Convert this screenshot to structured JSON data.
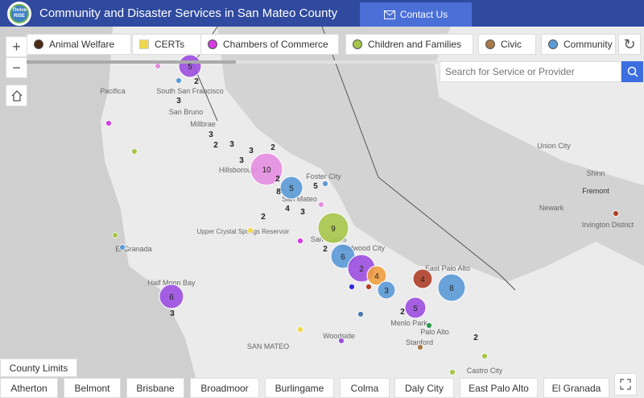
{
  "header": {
    "logo_text": "Thrive RISE",
    "title": "Community and Disaster Services in San Mateo County",
    "contact_label": "Contact Us"
  },
  "legend": [
    {
      "label": "Animal Welfare",
      "color": "#4a2a14",
      "shape": "circle"
    },
    {
      "label": "CERTs",
      "color": "#f0d84a",
      "shape": "square"
    },
    {
      "label": "Chambers of Commerce",
      "color": "#d23ee0",
      "shape": "circle"
    },
    {
      "label": "Children and Families",
      "color": "#a6c64a",
      "shape": "circle"
    },
    {
      "label": "Civic",
      "color": "#a87a48",
      "shape": "circle"
    },
    {
      "label": "Community",
      "color": "#5a9ad6",
      "shape": "circle"
    }
  ],
  "controls": {
    "zoom_in": "+",
    "zoom_out": "−",
    "home_icon": "home-icon",
    "refresh_icon": "refresh-icon",
    "fullscreen_icon": "fullscreen-icon"
  },
  "search": {
    "placeholder": "Search for Service or Provider",
    "icon": "search-icon"
  },
  "county_limits_label": "County Limits",
  "city_buttons": [
    "Atherton",
    "Belmont",
    "Brisbane",
    "Broadmoor",
    "Burlingame",
    "Colma",
    "Daly City",
    "East Palo Alto",
    "El Granada"
  ],
  "map": {
    "places": [
      "South San Francisco",
      "Pacifica",
      "San Bruno",
      "Millbrae",
      "Hillsborough",
      "Foster City",
      "San Mateo",
      "Upper Crystal Springs Reservoir",
      "San Carlos",
      "Redwood City",
      "El Granada",
      "Half Moon Bay",
      "Menlo Park",
      "Palo Alto",
      "East Palo Alto",
      "Stanford",
      "Woodside",
      "SAN MATEO",
      "Union City",
      "Shinn",
      "Fremont",
      "Newark",
      "Irvington District",
      "Castro City"
    ],
    "clusters": [
      {
        "count": "5",
        "color": "#9b4fe0"
      },
      {
        "count": "10",
        "color": "#e58ee0"
      },
      {
        "count": "5",
        "color": "#5a9ad6"
      },
      {
        "count": "9",
        "color": "#a6c64a"
      },
      {
        "count": "6",
        "color": "#5a9ad6"
      },
      {
        "count": "2",
        "color": "#9b4fe0"
      },
      {
        "count": "4",
        "color": "#f0a040"
      },
      {
        "count": "3",
        "color": "#5a9ad6"
      },
      {
        "count": "4",
        "color": "#b0402a"
      },
      {
        "count": "8",
        "color": "#5a9ad6"
      },
      {
        "count": "6",
        "color": "#9b4fe0"
      },
      {
        "count": "5",
        "color": "#9b4fe0"
      }
    ],
    "points": [
      "#5a9ad6",
      "#e58ee0",
      "#d23ee0",
      "#a6c64a",
      "#2a2ae0",
      "#b0402a",
      "#4a7ab0",
      "#d23ee0",
      "#a6c64a",
      "#f0d84a",
      "#9b4fe0",
      "#2a9a4a",
      "#a87a48",
      "#a6c64a",
      "#a6c64a",
      "#b0402a",
      "#e58ee0",
      "#5a9ad6",
      "#5a9ad6",
      "#f0d84a"
    ],
    "count_labels": [
      "2",
      "3",
      "3",
      "2",
      "3",
      "3",
      "2",
      "3",
      "2",
      "8",
      "5",
      "4",
      "3",
      "2",
      "2",
      "3",
      "2",
      "2"
    ]
  }
}
